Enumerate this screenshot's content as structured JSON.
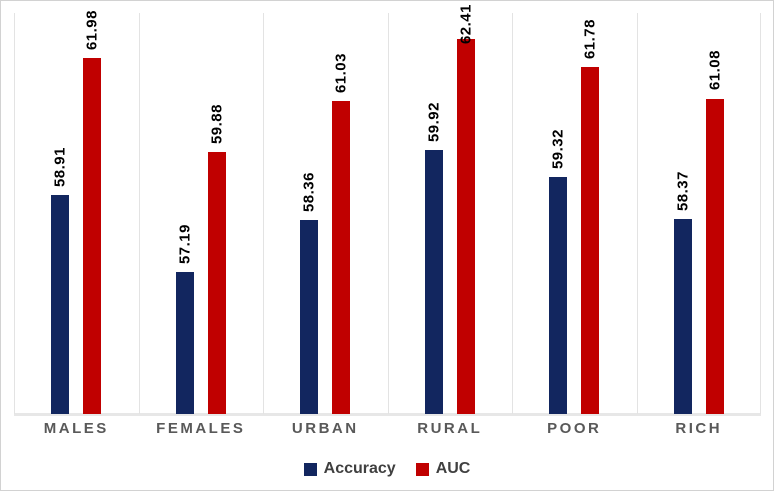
{
  "chart_data": {
    "type": "bar",
    "title": "",
    "xlabel": "",
    "ylabel": "",
    "categories": [
      "MALES",
      "FEMALES",
      "URBAN",
      "RURAL",
      "POOR",
      "RICH"
    ],
    "series": [
      {
        "name": "Accuracy",
        "color": "#12265f",
        "values": [
          58.91,
          57.19,
          58.36,
          59.92,
          59.32,
          58.37
        ]
      },
      {
        "name": "AUC",
        "color": "#c00000",
        "values": [
          61.98,
          59.88,
          61.03,
          62.41,
          61.78,
          61.08
        ]
      }
    ],
    "ylim": [
      54,
      63
    ],
    "y_axis_visible": false,
    "grid": "vertical category separator lines only",
    "data_labels": "rotated 270deg, bold black, above bar tops",
    "legend_position": "bottom-center"
  },
  "colors": {
    "accuracy": "#12265f",
    "auc": "#c00000",
    "gridline": "#e3e3e3",
    "axis_line": "#e7e7e7",
    "category_text": "#595959",
    "legend_text": "#404040",
    "chart_border": "#d2d2d2",
    "background": "#ffffff"
  },
  "legend": {
    "items": [
      {
        "label": "Accuracy",
        "color": "#12265f"
      },
      {
        "label": "AUC",
        "color": "#c00000"
      }
    ]
  }
}
